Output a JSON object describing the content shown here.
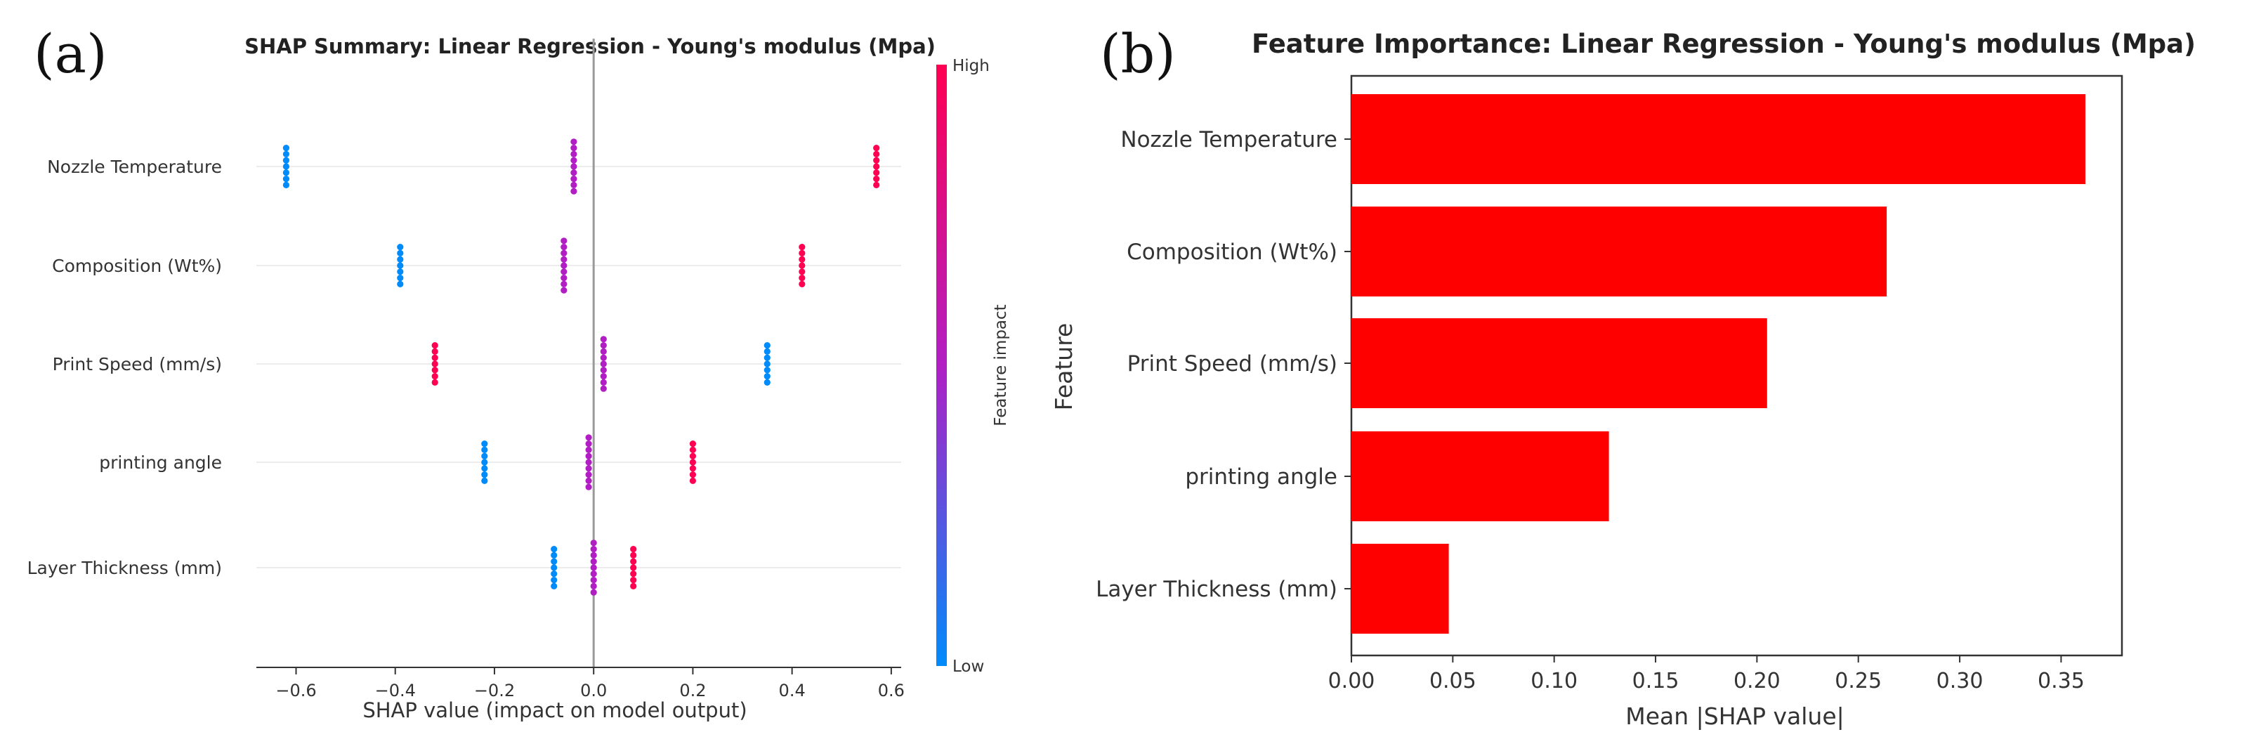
{
  "panels": {
    "a_label": "(a)",
    "b_label": "(b)"
  },
  "chart_data": [
    {
      "id": "shap_summary",
      "type": "scatter",
      "title": "SHAP Summary: Linear Regression - Young's modulus  (Mpa)",
      "xlabel": "SHAP value (impact on model output)",
      "ylabel": "",
      "xlim": [
        -0.68,
        0.62
      ],
      "xticks": [
        -0.6,
        -0.4,
        -0.2,
        0.0,
        0.2,
        0.4,
        0.6
      ],
      "xtick_labels": [
        "−0.6",
        "−0.4",
        "−0.2",
        "0.0",
        "0.2",
        "0.4",
        "0.6"
      ],
      "features": [
        "Nozzle Temperature",
        "Composition (Wt%)",
        "Print Speed (mm/s)",
        "printing angle",
        "Layer Thickness (mm)"
      ],
      "series": [
        {
          "feature": "Nozzle Temperature",
          "points": [
            {
              "x": -0.62,
              "impact": "low",
              "count": 7
            },
            {
              "x": -0.04,
              "impact": "mid",
              "count": 9
            },
            {
              "x": 0.57,
              "impact": "high",
              "count": 7
            }
          ]
        },
        {
          "feature": "Composition (Wt%)",
          "points": [
            {
              "x": -0.39,
              "impact": "low",
              "count": 7
            },
            {
              "x": -0.06,
              "impact": "mid",
              "count": 9
            },
            {
              "x": 0.42,
              "impact": "high",
              "count": 7
            }
          ]
        },
        {
          "feature": "Print Speed (mm/s)",
          "points": [
            {
              "x": -0.32,
              "impact": "high",
              "count": 7
            },
            {
              "x": 0.02,
              "impact": "mid",
              "count": 9
            },
            {
              "x": 0.35,
              "impact": "low",
              "count": 7
            }
          ]
        },
        {
          "feature": "printing angle",
          "points": [
            {
              "x": -0.22,
              "impact": "low",
              "count": 7
            },
            {
              "x": -0.01,
              "impact": "mid",
              "count": 9
            },
            {
              "x": 0.2,
              "impact": "high",
              "count": 7
            }
          ]
        },
        {
          "feature": "Layer Thickness (mm)",
          "points": [
            {
              "x": -0.08,
              "impact": "low",
              "count": 7
            },
            {
              "x": 0.0,
              "impact": "mid",
              "count": 9
            },
            {
              "x": 0.08,
              "impact": "high",
              "count": 7
            }
          ]
        }
      ],
      "colorbar": {
        "label": "Feature impact",
        "high_label": "High",
        "low_label": "Low"
      }
    },
    {
      "id": "feature_importance",
      "type": "bar",
      "orientation": "horizontal",
      "title": "Feature Importance: Linear Regression - Young's modulus  (Mpa)",
      "xlabel": "Mean |SHAP value|",
      "ylabel": "Feature",
      "xlim": [
        0,
        0.38
      ],
      "xticks": [
        0.0,
        0.05,
        0.1,
        0.15,
        0.2,
        0.25,
        0.3,
        0.35
      ],
      "xtick_labels": [
        "0.00",
        "0.05",
        "0.10",
        "0.15",
        "0.20",
        "0.25",
        "0.30",
        "0.35"
      ],
      "categories": [
        "Nozzle Temperature",
        "Composition (Wt%)",
        "Print Speed (mm/s)",
        "printing angle",
        "Layer Thickness (mm)"
      ],
      "values": [
        0.362,
        0.264,
        0.205,
        0.127,
        0.048
      ]
    }
  ],
  "colors": {
    "high": "#ff0052",
    "mid": "#b11fc4",
    "low": "#008bfb",
    "bar": "#ff0000",
    "axis": "#333333",
    "zero_line": "#999999",
    "row_grid": "#ececec"
  }
}
